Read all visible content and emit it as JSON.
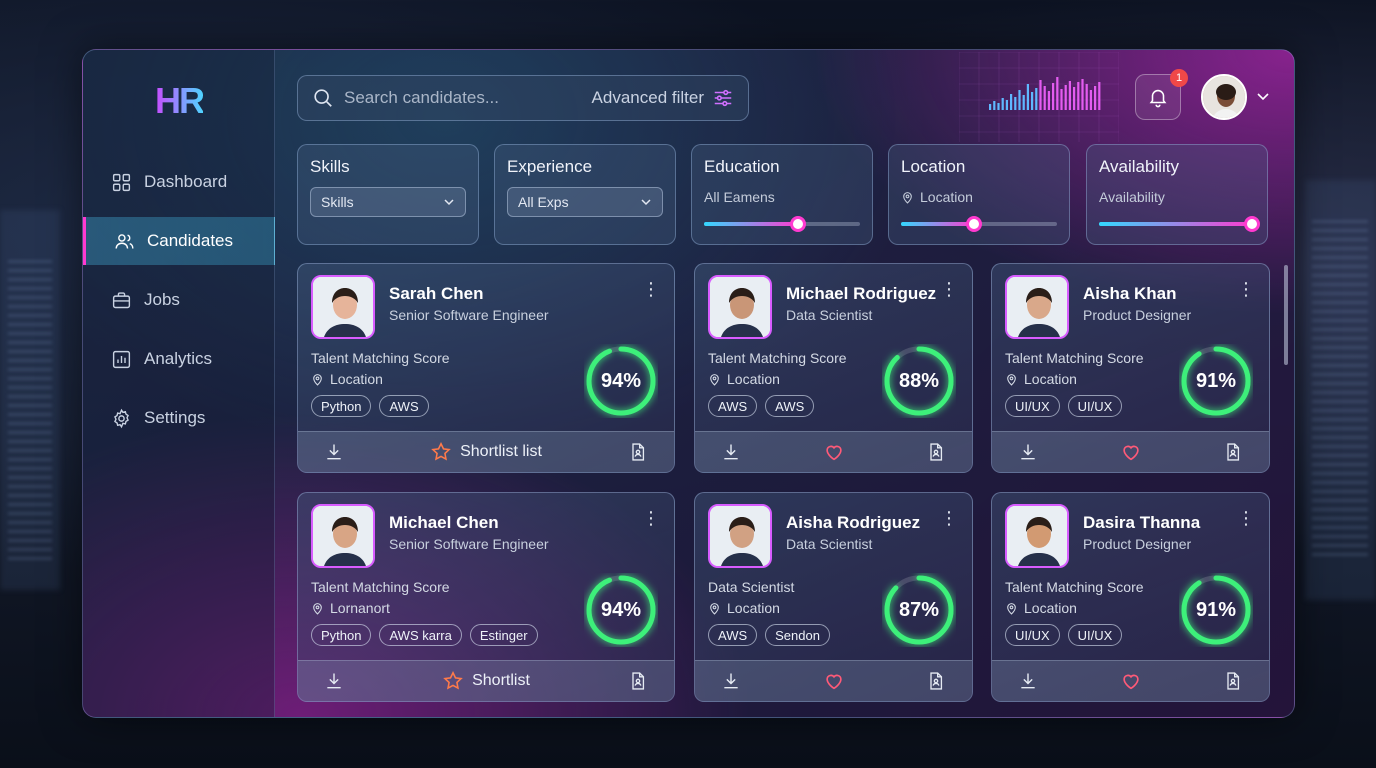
{
  "brand": {
    "logo": "HR"
  },
  "sidebar": {
    "items": [
      {
        "label": "Dashboard",
        "icon": "dashboard-icon"
      },
      {
        "label": "Candidates",
        "icon": "users-icon",
        "active": true
      },
      {
        "label": "Jobs",
        "icon": "briefcase-icon"
      },
      {
        "label": "Analytics",
        "icon": "chart-icon"
      },
      {
        "label": "Settings",
        "icon": "gear-icon"
      }
    ]
  },
  "header": {
    "search_placeholder": "Search candidates...",
    "advanced_filter": "Advanced filter",
    "notifications_count": "1"
  },
  "filters": {
    "skills": {
      "title": "Skills",
      "value": "Skills"
    },
    "experience": {
      "title": "Experience",
      "value": "All Exps"
    },
    "education": {
      "title": "Education",
      "value": "All Eamens",
      "level": 0.6
    },
    "location": {
      "title": "Location",
      "value": "Location",
      "level": 0.47
    },
    "availability": {
      "title": "Availability",
      "value": "Availability",
      "level": 0.98
    }
  },
  "candidates": [
    {
      "name": "Sarah Chen",
      "role": "Senior Software Engineer",
      "score_label": "Talent Matching Score",
      "location": "Location",
      "tags": [
        "Python",
        "AWS"
      ],
      "score": "94%",
      "score_value": 94,
      "action": "Shortlist list",
      "photo_color": "#e6b49a"
    },
    {
      "name": "Michael Rodriguez",
      "role": "Data Scientist",
      "score_label": "Talent Matching Score",
      "location": "Location",
      "tags": [
        "AWS",
        "AWS"
      ],
      "score": "88%",
      "score_value": 88,
      "action": "",
      "photo_color": "#c99677"
    },
    {
      "name": "Aisha Khan",
      "role": "Product Designer",
      "score_label": "Talent Matching Score",
      "location": "Location",
      "tags": [
        "UI/UX",
        "UI/UX"
      ],
      "score": "91%",
      "score_value": 91,
      "action": "",
      "photo_color": "#d9a88a"
    },
    {
      "name": "Michael Chen",
      "role": "Senior Software Engineer",
      "score_label": "Talent Matching Score",
      "location": "Lornanort",
      "tags": [
        "Python",
        "AWS karra",
        "Estinger"
      ],
      "score": "94%",
      "score_value": 94,
      "action": "Shortlist",
      "photo_color": "#d8a585"
    },
    {
      "name": "Aisha Rodriguez",
      "role": "Data Scientist",
      "score_label": "Data Scientist",
      "location": "Location",
      "tags": [
        "AWS",
        "Sendon"
      ],
      "score": "87%",
      "score_value": 87,
      "action": "",
      "photo_color": "#d1a183"
    },
    {
      "name": "Dasira Thanna",
      "role": "Product Designer",
      "score_label": "Talent Matching Score",
      "location": "Location",
      "tags": [
        "UI/UX",
        "UI/UX"
      ],
      "score": "91%",
      "score_value": 91,
      "action": "",
      "photo_color": "#d29a72"
    }
  ],
  "colors": {
    "accent_pink": "#ff3ad0",
    "accent_cyan": "#32d8ff",
    "score_green": "#3df07a"
  }
}
